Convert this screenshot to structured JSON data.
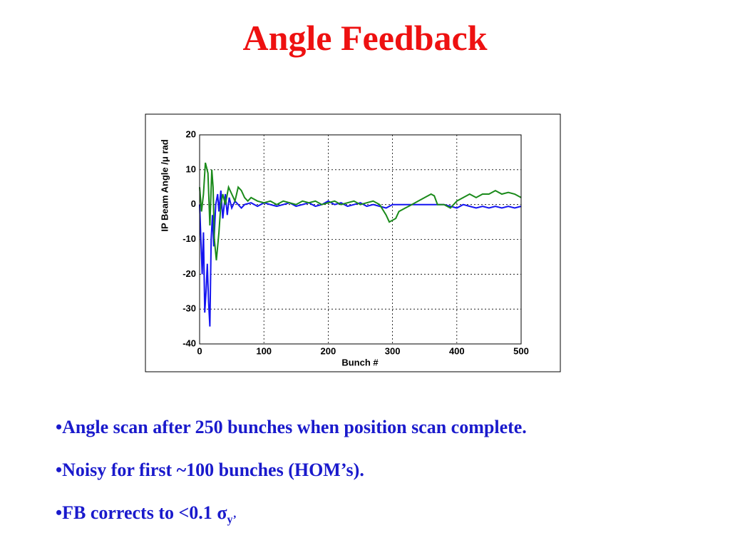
{
  "title": "Angle Feedback",
  "bullets": [
    {
      "text": "•Angle scan after 250 bunches when position scan complete."
    },
    {
      "text": "•Noisy for first ~100 bunches (HOM’s)."
    },
    {
      "text": "•FB corrects to <0.1 ",
      "symbol": "σ",
      "subscript": "y’"
    }
  ],
  "chart_data": {
    "type": "line",
    "xlabel": "Bunch #",
    "ylabel": "IP Beam Angle /μ rad",
    "xlim": [
      0,
      500
    ],
    "xticks": [
      0,
      100,
      200,
      300,
      400,
      500
    ],
    "ylim": [
      -40,
      20
    ],
    "yticks": [
      -40,
      -30,
      -20,
      -10,
      0,
      10,
      20
    ],
    "grid": true,
    "series": [
      {
        "color": "#1414f0",
        "x": [
          0,
          2,
          4,
          6,
          8,
          10,
          12,
          14,
          16,
          18,
          20,
          22,
          25,
          28,
          30,
          33,
          36,
          40,
          43,
          46,
          50,
          55,
          60,
          65,
          70,
          80,
          90,
          100,
          110,
          120,
          130,
          140,
          150,
          160,
          170,
          180,
          190,
          200,
          210,
          220,
          230,
          240,
          250,
          260,
          270,
          280,
          290,
          300,
          380,
          390,
          400,
          410,
          420,
          430,
          440,
          450,
          460,
          470,
          480,
          490,
          500
        ],
        "values": [
          0,
          -10,
          -20,
          -8,
          -31,
          -25,
          -17,
          -28,
          -35,
          -10,
          -3,
          -12,
          0,
          3,
          -2,
          4,
          -4,
          3,
          -3,
          2,
          -1,
          1,
          0,
          -1,
          0,
          0.5,
          -0.5,
          0.5,
          0,
          -0.5,
          0,
          0.5,
          -0.5,
          0,
          0.5,
          -0.5,
          0,
          1,
          0,
          0.5,
          -0.5,
          0,
          0.5,
          -0.5,
          0,
          -0.5,
          -1,
          0,
          0,
          -0.5,
          -1,
          0,
          -0.5,
          -1,
          -0.5,
          -1,
          -0.5,
          -1,
          -0.5,
          -1,
          -0.5
        ]
      },
      {
        "color": "#1a8a1a",
        "x": [
          0,
          3,
          6,
          9,
          13,
          16,
          19,
          21,
          23,
          26,
          30,
          33,
          36,
          40,
          45,
          50,
          55,
          60,
          65,
          70,
          75,
          80,
          90,
          100,
          110,
          120,
          130,
          140,
          150,
          160,
          170,
          180,
          190,
          200,
          210,
          220,
          230,
          240,
          250,
          260,
          270,
          280,
          290,
          295,
          305,
          310,
          320,
          330,
          340,
          350,
          360,
          365,
          370,
          380,
          390,
          400,
          410,
          420,
          430,
          440,
          450,
          460,
          470,
          480,
          490,
          500
        ],
        "values": [
          5,
          -2,
          3,
          12,
          9,
          -6,
          10,
          5,
          -10,
          -16,
          -8,
          0,
          3,
          0,
          5,
          3,
          1,
          5,
          4,
          2,
          1,
          2,
          1,
          0.5,
          1,
          0,
          1,
          0.5,
          0,
          1,
          0.5,
          1,
          0,
          0.5,
          1,
          0,
          0.5,
          1,
          0,
          0.5,
          1,
          0,
          -3,
          -5,
          -4,
          -2,
          -1,
          0,
          1,
          2,
          3,
          2.5,
          0,
          0,
          -1,
          1,
          2,
          3,
          2,
          3,
          3,
          4,
          3,
          3.5,
          3,
          2
        ]
      }
    ]
  }
}
